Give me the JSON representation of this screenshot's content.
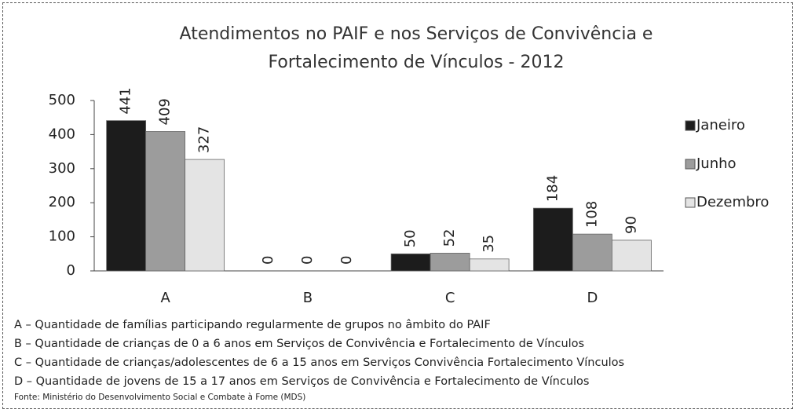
{
  "chart_data": {
    "type": "bar",
    "title": "Atendimentos no PAIF e nos Serviços de Convivência e Fortalecimento de Vínculos - 2012",
    "categories": [
      "A",
      "B",
      "C",
      "D"
    ],
    "series": [
      {
        "name": "Janeiro",
        "color": "#1c1c1c",
        "values": [
          441,
          0,
          50,
          184
        ]
      },
      {
        "name": "Junho",
        "color": "#9c9c9c",
        "values": [
          409,
          0,
          52,
          108
        ]
      },
      {
        "name": "Dezembro",
        "color": "#e4e4e4",
        "values": [
          327,
          0,
          35,
          90
        ]
      }
    ],
    "ylim": [
      0,
      500
    ],
    "yticks": [
      0,
      100,
      200,
      300,
      400,
      500
    ],
    "grid": false,
    "legend": "right",
    "notes": [
      "A – Quantidade de famílias participando regularmente de grupos no âmbito do PAIF",
      "B – Quantidade de crianças de 0 a 6 anos em Serviços de Convivência e Fortalecimento de Vínculos",
      "C – Quantidade de crianças/adolescentes de 6 a 15 anos em Serviços Convivência Fortalecimento Vínculos",
      "D – Quantidade de jovens de 15 a 17 anos em Serviços de Convivência e Fortalecimento de Vínculos"
    ],
    "source": "Fonte: Ministério do Desenvolvimento Social e Combate à Fome (MDS)"
  }
}
